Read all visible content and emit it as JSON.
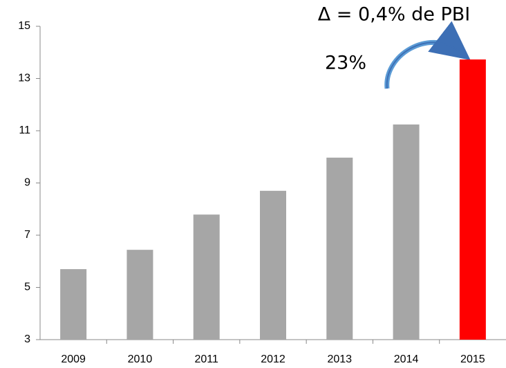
{
  "chart_data": {
    "type": "bar",
    "categories": [
      "2009",
      "2010",
      "2011",
      "2012",
      "2013",
      "2014",
      "2015"
    ],
    "values": [
      5.7,
      6.44,
      7.79,
      8.7,
      9.97,
      11.24,
      13.73
    ],
    "colors": [
      "#a6a6a6",
      "#a6a6a6",
      "#a6a6a6",
      "#a6a6a6",
      "#a6a6a6",
      "#a6a6a6",
      "#ff0000"
    ],
    "ylim": [
      3,
      15
    ],
    "yticks": [
      3,
      5,
      7,
      9,
      11,
      13,
      15
    ],
    "grid": false,
    "annotations": [
      "Δ = 0,4% de PBI",
      "23%"
    ]
  }
}
